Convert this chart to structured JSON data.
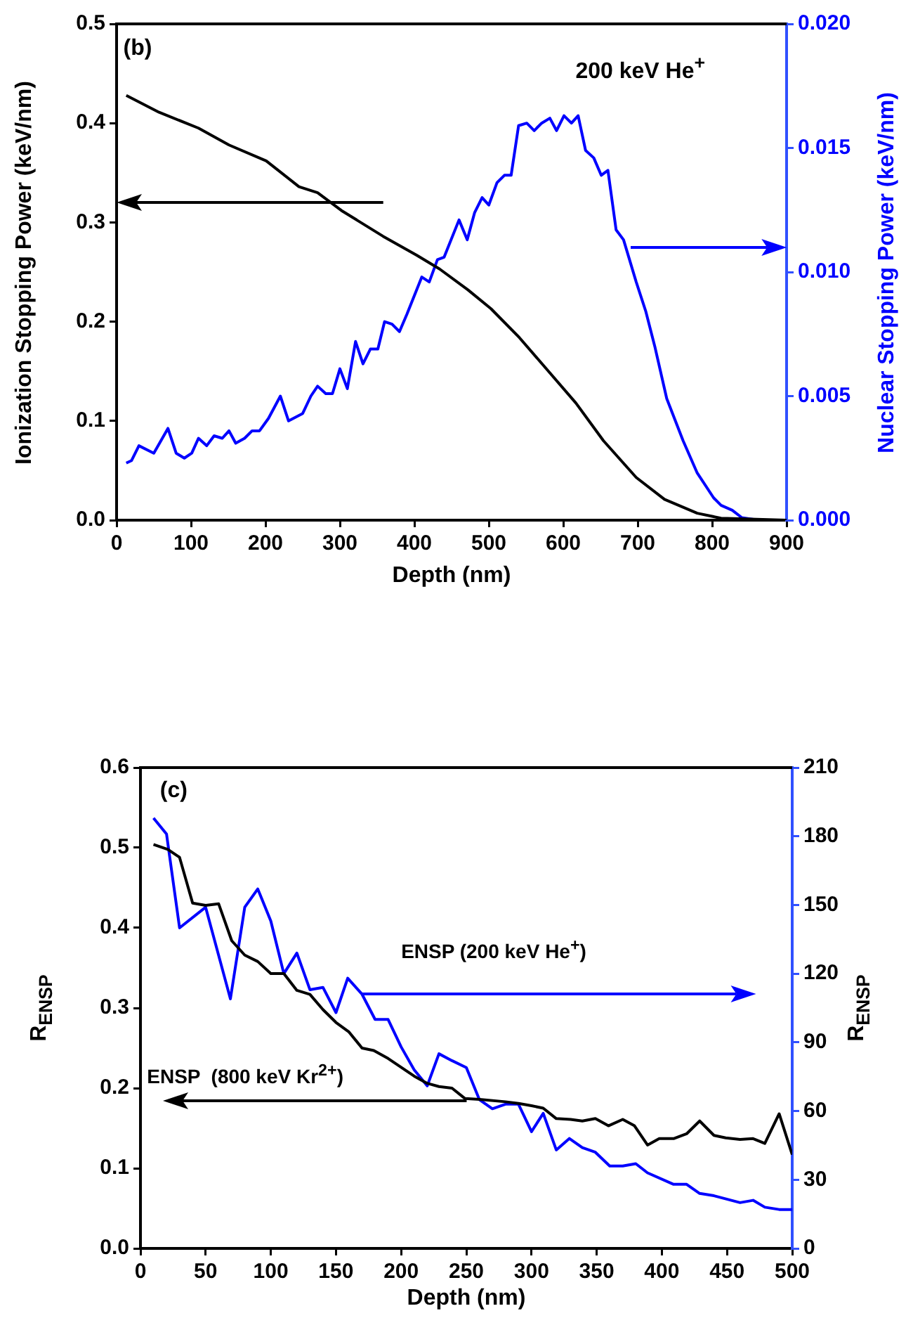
{
  "chart_data": [
    {
      "type": "line",
      "xlabel": "Depth (nm)",
      "ylabel": "Ionization Stopping Power (keV/nm)",
      "y2label": "Nuclear Stopping Power (keV/nm)",
      "annotations": [
        "(b)",
        "200 keV He$^{+}$"
      ],
      "xlim": [
        0,
        900
      ],
      "xticks": [
        0,
        100,
        200,
        300,
        400,
        500,
        600,
        700,
        800,
        900
      ],
      "ylim": [
        0,
        0.5
      ],
      "yticks": [
        {
          "value": 0,
          "label": "0.0"
        },
        {
          "value": 0.1,
          "label": "0.1"
        },
        {
          "value": 0.2,
          "label": "0.2"
        },
        {
          "value": 0.3,
          "label": "0.3"
        },
        {
          "value": 0.4,
          "label": "0.4"
        },
        {
          "value": 0.5,
          "label": "0.5"
        }
      ],
      "y2lim": [
        0,
        0.02
      ],
      "y2ticks": [
        {
          "value": 0,
          "label": "0.000"
        },
        {
          "value": 0.005,
          "label": "0.005"
        },
        {
          "value": 0.01,
          "label": "0.010"
        },
        {
          "value": 0.015,
          "label": "0.015"
        },
        {
          "value": 0.02,
          "label": "0.020"
        }
      ],
      "marker": "none",
      "line_style": "solid",
      "series": [
        {
          "color": "#000000",
          "x": [
            13,
            57,
            110,
            151,
            201,
            245,
            270,
            302,
            358,
            403,
            434,
            472,
            503,
            541,
            579,
            617,
            654,
            698,
            736,
            780,
            812,
            900
          ],
          "values": [
            0.428,
            0.411,
            0.395,
            0.378,
            0.362,
            0.336,
            0.33,
            0.312,
            0.286,
            0.267,
            0.253,
            0.232,
            0.213,
            0.184,
            0.151,
            0.118,
            0.08,
            0.043,
            0.021,
            0.007,
            0.002,
            0
          ]
        },
        {
          "color": "#0000ff",
          "axis": "y2",
          "x": [
            13,
            20,
            30,
            50,
            69,
            80,
            91,
            101,
            110,
            121,
            131,
            142,
            151,
            160,
            172,
            182,
            192,
            204,
            220,
            231,
            250,
            261,
            270,
            281,
            290,
            300,
            310,
            321,
            331,
            341,
            351,
            360,
            370,
            380,
            390,
            410,
            420,
            431,
            440,
            460,
            471,
            481,
            491,
            500,
            511,
            521,
            530,
            540,
            551,
            561,
            571,
            582,
            591,
            601,
            611,
            620,
            630,
            641,
            651,
            660,
            671,
            681,
            698,
            711,
            723,
            739,
            761,
            780,
            802,
            812,
            827,
            840,
            862,
            900
          ],
          "values": [
            0.0023,
            0.0024,
            0.003,
            0.0027,
            0.0037,
            0.0027,
            0.0025,
            0.0027,
            0.0033,
            0.003,
            0.0034,
            0.0033,
            0.0036,
            0.0031,
            0.0033,
            0.0036,
            0.0036,
            0.0041,
            0.005,
            0.004,
            0.0043,
            0.005,
            0.0054,
            0.0051,
            0.0051,
            0.0061,
            0.0053,
            0.0072,
            0.0063,
            0.0069,
            0.0069,
            0.008,
            0.0079,
            0.0076,
            0.0083,
            0.0098,
            0.0096,
            0.0105,
            0.0106,
            0.0121,
            0.0113,
            0.0124,
            0.013,
            0.0127,
            0.0136,
            0.0139,
            0.0139,
            0.0159,
            0.016,
            0.0157,
            0.016,
            0.0162,
            0.0157,
            0.0163,
            0.016,
            0.0163,
            0.0149,
            0.0146,
            0.0139,
            0.0141,
            0.0117,
            0.0113,
            0.0096,
            0.0084,
            0.007,
            0.0049,
            0.0032,
            0.0019,
            0.0009,
            0.0006,
            0.0004,
            0.0001,
            0,
            0
          ]
        }
      ]
    },
    {
      "type": "line",
      "xlabel": "Depth (nm)",
      "ylabel": "R$_{ENSP}$",
      "y2label": "R$_{ENSP}$",
      "annotations": [
        "(c)",
        "ENSP (200 keV He$^{+}$)",
        "ENSP  (800 keV Kr$^{2+}$)"
      ],
      "xlim": [
        0,
        500
      ],
      "xticks": [
        0,
        50,
        100,
        150,
        200,
        250,
        300,
        350,
        400,
        450,
        500
      ],
      "ylim": [
        0,
        0.6
      ],
      "yticks": [
        {
          "value": 0,
          "label": "0.0"
        },
        {
          "value": 0.1,
          "label": "0.1"
        },
        {
          "value": 0.2,
          "label": "0.2"
        },
        {
          "value": 0.3,
          "label": "0.3"
        },
        {
          "value": 0.4,
          "label": "0.4"
        },
        {
          "value": 0.5,
          "label": "0.5"
        },
        {
          "value": 0.6,
          "label": "0.6"
        }
      ],
      "y2lim": [
        0,
        210
      ],
      "y2ticks": [
        0,
        30,
        60,
        90,
        120,
        150,
        180,
        210
      ],
      "marker": "none",
      "line_style": "solid",
      "series": [
        {
          "color": "#000000",
          "x": [
            10,
            21,
            30,
            40,
            50,
            60,
            70,
            80,
            90,
            100,
            110,
            120,
            130,
            140,
            150,
            160,
            170,
            179,
            190,
            200,
            210,
            220,
            229,
            239,
            249,
            260,
            280,
            290,
            300,
            309,
            319,
            330,
            339,
            349,
            359,
            370,
            379,
            389,
            398,
            409,
            419,
            429,
            440,
            449,
            460,
            470,
            479,
            490,
            500
          ],
          "values": [
            0.504,
            0.498,
            0.488,
            0.431,
            0.428,
            0.43,
            0.384,
            0.366,
            0.358,
            0.343,
            0.343,
            0.322,
            0.317,
            0.298,
            0.282,
            0.27,
            0.25,
            0.247,
            0.237,
            0.226,
            0.215,
            0.206,
            0.202,
            0.2,
            0.187,
            0.186,
            0.183,
            0.181,
            0.178,
            0.175,
            0.162,
            0.161,
            0.159,
            0.162,
            0.153,
            0.161,
            0.153,
            0.129,
            0.137,
            0.137,
            0.143,
            0.159,
            0.141,
            0.138,
            0.136,
            0.137,
            0.131,
            0.168,
            0.117
          ]
        },
        {
          "color": "#0000ff",
          "axis": "y2",
          "x": [
            10,
            20,
            30,
            50,
            69,
            80,
            90,
            100,
            110,
            120,
            130,
            140,
            150,
            159,
            170,
            180,
            190,
            200,
            210,
            220,
            229,
            239,
            250,
            260,
            270,
            280,
            290,
            300,
            309,
            319,
            329,
            339,
            349,
            360,
            370,
            380,
            389,
            409,
            419,
            429,
            440,
            460,
            470,
            479,
            490,
            500
          ],
          "values": [
            188,
            181,
            140,
            149,
            109,
            149,
            157,
            143,
            120,
            129,
            113,
            114,
            103,
            118,
            111,
            100,
            100,
            88,
            78,
            71,
            85,
            82,
            79,
            65,
            61,
            63,
            63,
            51,
            59,
            43,
            48,
            44,
            42,
            36,
            36,
            37,
            33,
            28,
            28,
            24,
            23,
            20,
            21,
            18,
            17,
            17
          ]
        }
      ]
    }
  ]
}
